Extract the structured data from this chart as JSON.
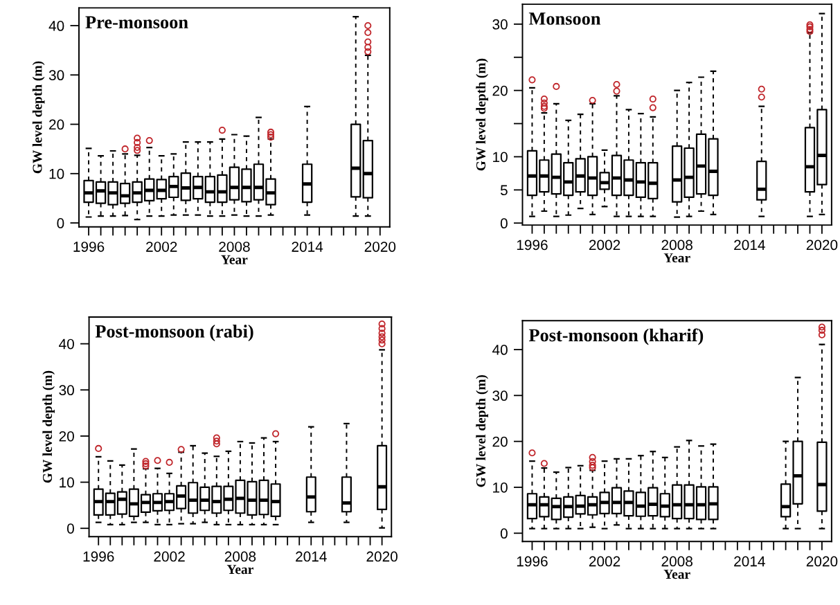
{
  "chart_data": [
    {
      "type": "box",
      "title": "Pre-monsoon",
      "xlabel": "Year",
      "ylabel": "GW level depth (m)",
      "categories": [
        "1996",
        null,
        null,
        null,
        null,
        null,
        "2002",
        null,
        null,
        null,
        null,
        null,
        "2008",
        null,
        null,
        null,
        null,
        null,
        "2014",
        null,
        null,
        null,
        null,
        null,
        "2020"
      ],
      "ylim": [
        -0.8,
        43.6
      ],
      "yticks": [
        0,
        10,
        20,
        30,
        40
      ],
      "boxes": [
        {
          "low": 1.2,
          "q1": 4.2,
          "median": 6.1,
          "q3": 8.6,
          "high": 15.1
        },
        {
          "low": 1.4,
          "q1": 4.0,
          "median": 6.5,
          "q3": 8.3,
          "high": 13.6
        },
        {
          "low": 1.4,
          "q1": 3.7,
          "median": 6.1,
          "q3": 8.3,
          "high": 14.6
        },
        {
          "low": 1.5,
          "q1": 4.0,
          "median": 5.5,
          "q3": 8.0,
          "high": 14.0,
          "outliers": [
            15.0
          ]
        },
        {
          "low": 0.7,
          "q1": 4.2,
          "median": 6.1,
          "q3": 8.3,
          "high": 13.7,
          "outliers": [
            14.7,
            15.3,
            16.3,
            17.2
          ]
        },
        {
          "low": 1.4,
          "q1": 4.5,
          "median": 6.6,
          "q3": 8.9,
          "high": 15.3,
          "outliers": [
            16.7
          ]
        },
        {
          "low": 1.4,
          "q1": 4.9,
          "median": 6.6,
          "q3": 8.8,
          "high": 13.6
        },
        {
          "low": 1.6,
          "q1": 5.2,
          "median": 7.4,
          "q3": 9.4,
          "high": 14.0
        },
        {
          "low": 1.6,
          "q1": 4.6,
          "median": 7.1,
          "q3": 10.1,
          "high": 16.4
        },
        {
          "low": 1.6,
          "q1": 4.9,
          "median": 7.2,
          "q3": 9.4,
          "high": 16.4
        },
        {
          "low": 1.4,
          "q1": 4.2,
          "median": 6.3,
          "q3": 9.4,
          "high": 16.4
        },
        {
          "low": 1.4,
          "q1": 4.2,
          "median": 6.3,
          "q3": 9.7,
          "high": 17.0,
          "outliers": [
            18.8
          ]
        },
        {
          "low": 1.6,
          "q1": 4.7,
          "median": 7.2,
          "q3": 11.3,
          "high": 17.9
        },
        {
          "low": 1.4,
          "q1": 4.3,
          "median": 7.2,
          "q3": 10.9,
          "high": 17.6
        },
        {
          "low": 1.4,
          "q1": 4.7,
          "median": 7.2,
          "q3": 11.9,
          "high": 21.4
        },
        {
          "low": 1.6,
          "q1": 3.7,
          "median": 6.1,
          "q3": 8.9,
          "high": 17.0,
          "outliers": [
            17.4,
            17.9,
            18.4
          ]
        },
        null,
        null,
        {
          "low": 1.6,
          "q1": 4.2,
          "median": 7.9,
          "q3": 11.9,
          "high": 23.6
        },
        null,
        null,
        null,
        {
          "low": 1.4,
          "q1": 5.3,
          "median": 11.1,
          "q3": 20.0,
          "high": 41.8
        },
        {
          "low": 1.4,
          "q1": 5.1,
          "median": 10.0,
          "q3": 16.7,
          "high": 34.0,
          "outliers": [
            34.7,
            35.6,
            36.7,
            38.6,
            40.0
          ]
        },
        null
      ]
    },
    {
      "type": "box",
      "title": "Monsoon",
      "xlabel": "Year",
      "ylabel": "GW level depth (m)",
      "categories": [
        "1996",
        null,
        null,
        null,
        null,
        null,
        "2002",
        null,
        null,
        null,
        null,
        null,
        "2008",
        null,
        null,
        null,
        null,
        null,
        "2014",
        null,
        null,
        null,
        null,
        null,
        "2020"
      ],
      "ylim": [
        -0.3,
        33
      ],
      "yticks": [
        0,
        5,
        10,
        {
          "value": 15,
          "label": null
        },
        20,
        {
          "value": 25,
          "label": null
        },
        30
      ],
      "boxes": [
        {
          "low": 1.0,
          "q1": 4.2,
          "median": 7.1,
          "q3": 10.9,
          "high": 20.4,
          "outliers": [
            21.6
          ]
        },
        {
          "low": 1.8,
          "q1": 4.7,
          "median": 7.1,
          "q3": 9.5,
          "high": 16.6,
          "outliers": [
            17.3,
            17.6,
            18.1,
            18.7
          ]
        },
        {
          "low": 1.0,
          "q1": 4.4,
          "median": 6.9,
          "q3": 10.4,
          "high": 18.0,
          "outliers": [
            20.6
          ]
        },
        {
          "low": 1.2,
          "q1": 4.2,
          "median": 6.2,
          "q3": 9.1,
          "high": 15.5
        },
        {
          "low": 2.2,
          "q1": 4.7,
          "median": 7.1,
          "q3": 9.7,
          "high": 16.4
        },
        {
          "low": 1.3,
          "q1": 4.2,
          "median": 6.8,
          "q3": 10.0,
          "high": 18.0,
          "outliers": [
            18.5
          ]
        },
        {
          "low": 2.5,
          "q1": 5.1,
          "median": 6.1,
          "q3": 7.6,
          "high": 11.0
        },
        {
          "low": 1.0,
          "q1": 4.2,
          "median": 6.8,
          "q3": 10.2,
          "high": 19.2,
          "outliers": [
            19.9,
            20.9
          ]
        },
        {
          "low": 1.0,
          "q1": 4.2,
          "median": 6.5,
          "q3": 9.5,
          "high": 17.1
        },
        {
          "low": 1.0,
          "q1": 3.9,
          "median": 6.2,
          "q3": 9.1,
          "high": 16.5
        },
        {
          "low": 1.0,
          "q1": 3.7,
          "median": 6.0,
          "q3": 9.1,
          "high": 16.0,
          "outliers": [
            17.4,
            18.7
          ]
        },
        null,
        {
          "low": 0.9,
          "q1": 3.2,
          "median": 6.5,
          "q3": 11.6,
          "high": 20.0
        },
        {
          "low": 1.0,
          "q1": 3.9,
          "median": 6.9,
          "q3": 11.3,
          "high": 21.2
        },
        {
          "low": 1.8,
          "q1": 4.4,
          "median": 8.6,
          "q3": 13.4,
          "high": 22.0
        },
        {
          "low": 1.3,
          "q1": 4.2,
          "median": 7.8,
          "q3": 12.7,
          "high": 22.9
        },
        null,
        null,
        null,
        {
          "low": 1.0,
          "q1": 3.5,
          "median": 5.1,
          "q3": 9.3,
          "high": 17.6,
          "outliers": [
            19.0,
            20.2
          ]
        },
        null,
        null,
        null,
        {
          "low": 1.0,
          "q1": 4.7,
          "median": 8.5,
          "q3": 14.4,
          "high": 28.7,
          "outliers": [
            28.9,
            29.2,
            29.6,
            29.9
          ]
        },
        {
          "low": 1.3,
          "q1": 5.8,
          "median": 10.2,
          "q3": 17.1,
          "high": 31.6
        }
      ]
    },
    {
      "type": "box",
      "title": "Post-monsoon (rabi)",
      "xlabel": "Year",
      "ylabel": "GW level depth (m)",
      "categories": [
        "1996",
        null,
        null,
        null,
        null,
        null,
        "2002",
        null,
        null,
        null,
        null,
        null,
        "2008",
        null,
        null,
        null,
        null,
        null,
        "2014",
        null,
        null,
        null,
        null,
        null,
        "2020"
      ],
      "ylim": [
        -1.8,
        45.8
      ],
      "yticks": [
        0,
        10,
        20,
        30,
        40
      ],
      "boxes": [
        {
          "low": 1.3,
          "q1": 2.9,
          "median": 5.8,
          "q3": 8.5,
          "high": 15.5,
          "outliers": [
            17.3
          ]
        },
        {
          "low": 0.8,
          "q1": 2.9,
          "median": 5.8,
          "q3": 7.6,
          "high": 14.6
        },
        {
          "low": 0.8,
          "q1": 3.1,
          "median": 6.3,
          "q3": 7.9,
          "high": 13.7
        },
        {
          "low": 1.3,
          "q1": 2.6,
          "median": 5.3,
          "q3": 8.5,
          "high": 17.2
        },
        {
          "low": 1.3,
          "q1": 3.5,
          "median": 5.6,
          "q3": 7.3,
          "high": 12.9,
          "outliers": [
            13.5,
            14.0,
            14.5
          ]
        },
        {
          "low": 0.8,
          "q1": 3.8,
          "median": 5.6,
          "q3": 7.5,
          "high": 13.0,
          "outliers": [
            14.7
          ]
        },
        {
          "low": 0.8,
          "q1": 3.9,
          "median": 5.8,
          "q3": 7.5,
          "high": 11.9,
          "outliers": [
            14.3
          ]
        },
        {
          "low": 1.0,
          "q1": 4.3,
          "median": 7.0,
          "q3": 9.2,
          "high": 16.5,
          "outliers": [
            17.1
          ]
        },
        {
          "low": 1.0,
          "q1": 3.3,
          "median": 6.1,
          "q3": 9.9,
          "high": 17.9
        },
        {
          "low": 1.3,
          "q1": 3.9,
          "median": 6.1,
          "q3": 8.9,
          "high": 16.3
        },
        {
          "low": 0.8,
          "q1": 3.3,
          "median": 5.8,
          "q3": 9.1,
          "high": 15.6,
          "outliers": [
            18.3,
            18.9,
            19.6
          ]
        },
        {
          "low": 0.8,
          "q1": 3.9,
          "median": 6.3,
          "q3": 9.1,
          "high": 16.7
        },
        {
          "low": 0.8,
          "q1": 3.3,
          "median": 6.5,
          "q3": 10.4,
          "high": 18.8
        },
        {
          "low": 0.8,
          "q1": 2.9,
          "median": 6.1,
          "q3": 10.1,
          "high": 18.5
        },
        {
          "low": 0.8,
          "q1": 3.0,
          "median": 6.1,
          "q3": 10.4,
          "high": 19.6
        },
        {
          "low": 0.8,
          "q1": 2.6,
          "median": 5.8,
          "q3": 9.6,
          "high": 18.8,
          "outliers": [
            20.5
          ]
        },
        null,
        null,
        {
          "low": 1.3,
          "q1": 3.6,
          "median": 6.8,
          "q3": 11.1,
          "high": 22.0
        },
        null,
        null,
        {
          "low": 1.3,
          "q1": 3.6,
          "median": 5.5,
          "q3": 11.1,
          "high": 22.7
        },
        null,
        null,
        {
          "low": 0.1,
          "q1": 4.1,
          "median": 9.0,
          "q3": 17.9,
          "high": 38.7,
          "outliers": [
            40.0,
            40.8,
            41.5,
            42.3,
            43.3,
            44.3
          ]
        }
      ]
    },
    {
      "type": "box",
      "title": "Post-monsoon (kharif)",
      "xlabel": "Year",
      "ylabel": "GW level depth (m)",
      "categories": [
        "1996",
        null,
        null,
        null,
        null,
        null,
        "2002",
        null,
        null,
        null,
        null,
        null,
        "2008",
        null,
        null,
        null,
        null,
        null,
        "2014",
        null,
        null,
        null,
        null,
        null,
        "2020"
      ],
      "ylim": [
        -1.8,
        46.3
      ],
      "yticks": [
        0,
        10,
        20,
        30,
        40
      ],
      "boxes": [
        {
          "low": 1.0,
          "q1": 3.2,
          "median": 6.2,
          "q3": 8.6,
          "high": 15.7,
          "outliers": [
            17.5
          ]
        },
        {
          "low": 1.0,
          "q1": 3.6,
          "median": 6.2,
          "q3": 7.9,
          "high": 14.2,
          "outliers": [
            15.2
          ]
        },
        {
          "low": 1.0,
          "q1": 3.0,
          "median": 5.8,
          "q3": 7.6,
          "high": 13.3
        },
        {
          "low": 1.0,
          "q1": 3.5,
          "median": 5.8,
          "q3": 7.9,
          "high": 14.3
        },
        {
          "low": 1.0,
          "q1": 4.2,
          "median": 5.9,
          "q3": 8.2,
          "high": 14.7
        },
        {
          "low": 1.3,
          "q1": 4.0,
          "median": 6.2,
          "q3": 7.9,
          "high": 13.7,
          "outliers": [
            14.3,
            14.8,
            15.6,
            16.5
          ]
        },
        {
          "low": 1.0,
          "q1": 4.3,
          "median": 6.7,
          "q3": 8.9,
          "high": 15.7
        },
        {
          "low": 1.8,
          "q1": 4.3,
          "median": 6.7,
          "q3": 9.9,
          "high": 16.2
        },
        {
          "low": 1.0,
          "q1": 3.8,
          "median": 6.7,
          "q3": 9.2,
          "high": 16.2
        },
        {
          "low": 1.0,
          "q1": 3.7,
          "median": 5.9,
          "q3": 8.9,
          "high": 16.9
        },
        {
          "low": 1.0,
          "q1": 3.8,
          "median": 6.3,
          "q3": 9.9,
          "high": 17.8
        },
        {
          "low": 1.0,
          "q1": 3.6,
          "median": 5.9,
          "q3": 8.6,
          "high": 16.5
        },
        {
          "low": 1.0,
          "q1": 3.2,
          "median": 6.2,
          "q3": 10.5,
          "high": 18.8
        },
        {
          "low": 1.0,
          "q1": 3.2,
          "median": 6.2,
          "q3": 10.5,
          "high": 20.2
        },
        {
          "low": 1.0,
          "q1": 3.0,
          "median": 6.2,
          "q3": 10.1,
          "high": 19.0
        },
        {
          "low": 1.0,
          "q1": 3.0,
          "median": 6.4,
          "q3": 10.1,
          "high": 19.4
        },
        null,
        null,
        null,
        null,
        null,
        {
          "low": 1.0,
          "q1": 3.6,
          "median": 5.8,
          "q3": 10.7,
          "high": 20.0
        },
        {
          "low": 1.0,
          "q1": 6.4,
          "median": 12.5,
          "q3": 20.0,
          "high": 33.9
        },
        null,
        {
          "low": 1.0,
          "q1": 4.8,
          "median": 10.6,
          "q3": 19.8,
          "high": 41.1,
          "outliers": [
            43.2,
            44.2,
            44.9
          ]
        }
      ]
    }
  ]
}
